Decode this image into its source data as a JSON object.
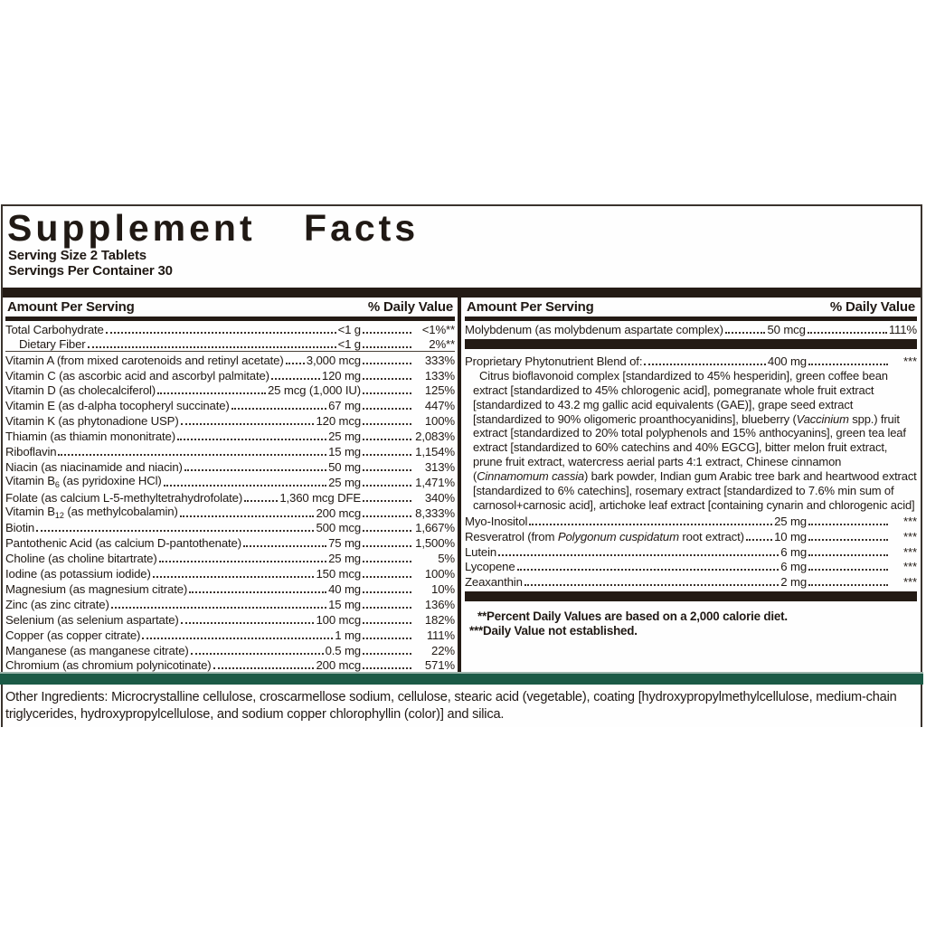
{
  "panel": {
    "title": "Supplement Facts",
    "serving_size": "Serving Size 2 Tablets",
    "servings_per_container": "Servings Per Container 30",
    "amount_header": "Amount Per Serving",
    "dv_header": "% Daily Value",
    "left_rows": [
      {
        "n": "Total Carbohydrate",
        "a": "<1 g",
        "d": "<1%**"
      },
      {
        "n": "Dietary Fiber",
        "a": "<1 g",
        "d": "2%**",
        "i": 1,
        "g": 1
      },
      {
        "n": "Vitamin A (from mixed carotenoids and retinyl acetate)",
        "a": "3,000 mcg",
        "d": "333%"
      },
      {
        "n": "Vitamin C (as ascorbic acid and ascorbyl palmitate)",
        "a": "120 mg",
        "d": "133%"
      },
      {
        "n": "Vitamin D (as cholecalciferol)",
        "a": "25 mcg (1,000 IU)",
        "d": "125%"
      },
      {
        "n": "Vitamin E (as d-alpha tocopheryl succinate)",
        "a": "67 mg",
        "d": "447%"
      },
      {
        "n": "Vitamin K (as phytonadione USP)",
        "a": "120 mcg",
        "d": "100%"
      },
      {
        "n": "Thiamin (as thiamin mononitrate)",
        "a": "25 mg",
        "d": "2,083%"
      },
      {
        "n": "Riboflavin",
        "a": "15 mg",
        "d": "1,154%"
      },
      {
        "n": "Niacin (as niacinamide and niacin)",
        "a": "50 mg",
        "d": "313%"
      },
      {
        "n": "Vitamin B<sub>6</sub> (as pyridoxine HCl)",
        "a": "25 mg",
        "d": "1,471%",
        "h": 1
      },
      {
        "n": "Folate (as calcium L-5-methyltetrahydrofolate)",
        "a": "1,360 mcg DFE",
        "d": "340%"
      },
      {
        "n": "Vitamin B<sub>12</sub> (as methylcobalamin)",
        "a": "200 mcg",
        "d": "8,333%",
        "h": 1
      },
      {
        "n": "Biotin",
        "a": "500 mcg",
        "d": "1,667%"
      },
      {
        "n": "Pantothenic Acid (as calcium D-pantothenate)",
        "a": "75 mg",
        "d": "1,500%"
      },
      {
        "n": "Choline (as choline bitartrate)",
        "a": "25 mg",
        "d": "5%"
      },
      {
        "n": "Iodine (as potassium iodide)",
        "a": "150 mcg",
        "d": "100%"
      },
      {
        "n": "Magnesium (as magnesium citrate)",
        "a": "40 mg",
        "d": "10%"
      },
      {
        "n": "Zinc (as zinc citrate)",
        "a": "15 mg",
        "d": "136%"
      },
      {
        "n": "Selenium (as selenium aspartate)",
        "a": "100 mcg",
        "d": "182%"
      },
      {
        "n": "Copper (as copper citrate)",
        "a": "1 mg",
        "d": "111%"
      },
      {
        "n": "Manganese (as manganese citrate)",
        "a": "0.5 mg",
        "d": "22%"
      },
      {
        "n": "Chromium (as chromium polynicotinate)",
        "a": "200 mcg",
        "d": "571%"
      }
    ],
    "right": {
      "top_rows": [
        {
          "n": "Molybdenum (as molybdenum aspartate complex)",
          "a": "50 mcg",
          "d": "111%"
        }
      ],
      "blend": {
        "name": "Proprietary Phytonutrient Blend of:",
        "amount": "400 mg",
        "dv": "***",
        "description_html": "Citrus bioflavonoid complex [standardized to 45% hesperidin], green coffee bean extract [standardized to 45% chlorogenic acid], pomegranate whole fruit extract [standardized to 43.2 mg gallic acid equivalents (GAE)], grape seed extract [standardized to 90% oligomeric proanthocyanidins], blueberry (<i>Vaccinium</i> spp.) fruit extract [standardized to 20% total polyphenols and 15% anthocyanins], green tea leaf extract [standardized to 60% catechins and 40% EGCG], bitter melon fruit extract, prune fruit extract, watercress aerial parts 4:1 extract, Chinese cinnamon (<i>Cinnamomum cassia</i>) bark powder, Indian gum Arabic tree bark and heartwood extract [standardized to 6% catechins], rosemary extract [standardized to 7.6% min sum of carnosol+carnosic acid], artichoke leaf extract [containing cynarin and chlorogenic acid]"
      },
      "rows": [
        {
          "n": "Myo-Inositol",
          "a": "25 mg",
          "d": "***"
        },
        {
          "n": "Resveratrol (from <i>Polygonum cuspidatum</i> root extract)",
          "a": "10 mg",
          "d": "***",
          "h": 1
        },
        {
          "n": "Lutein",
          "a": "6 mg",
          "d": "***"
        },
        {
          "n": "Lycopene",
          "a": "6 mg",
          "d": "***"
        },
        {
          "n": "Zeaxanthin",
          "a": "2 mg",
          "d": "***"
        }
      ],
      "footnote_1": "**Percent Daily Values are based on a 2,000 calorie diet.",
      "footnote_2": "***Daily Value not established."
    },
    "other_ingredients": "Other Ingredients: Microcrystalline cellulose, croscarmellose sodium, cellulose, stearic acid (vegetable), coating [hydroxypropylmethylcellulose, medium-chain triglycerides, hydroxypropylcellulose, and sodium copper chlorophyllin (color)] and silica."
  },
  "colors": {
    "bar": "#241b15",
    "green": "#1b5a46",
    "text": "#201914"
  }
}
